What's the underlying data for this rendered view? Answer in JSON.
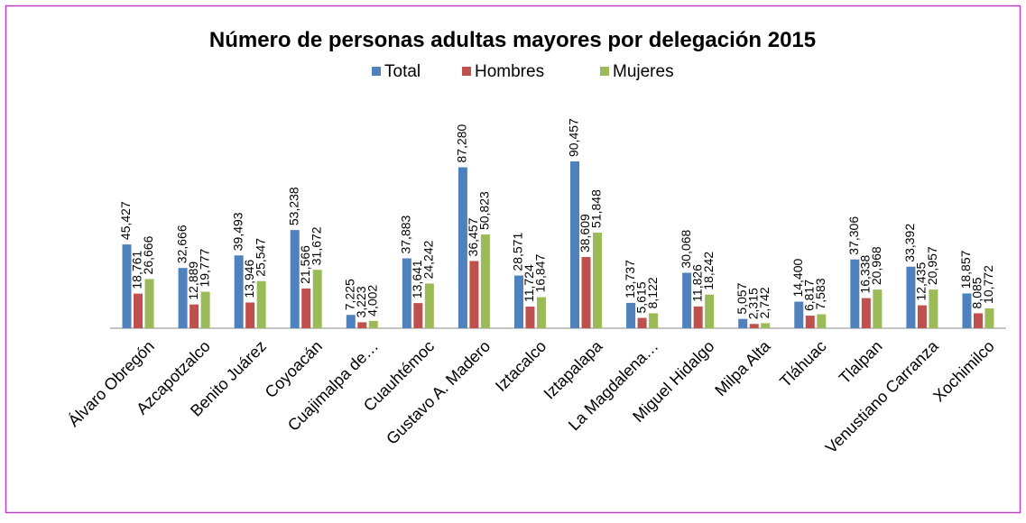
{
  "chart_data": {
    "type": "bar",
    "title": "Número de personas adultas mayores por delegación 2015",
    "categories": [
      "Álvaro Obregón",
      "Azcapotzalco",
      "Benito Juárez",
      "Coyoacán",
      "Cuajimalpa de…",
      "Cuauhtémoc",
      "Gustavo A. Madero",
      "Iztacalco",
      "Iztapalapa",
      "La Magdalena…",
      "Miguel Hidalgo",
      "Milpa Alta",
      "Tláhuac",
      "Tlalpan",
      "Venustiano Carranza",
      "Xochimilco"
    ],
    "series": [
      {
        "name": "Total",
        "color": "#4f81bd",
        "values": [
          45427,
          32666,
          39493,
          53238,
          7225,
          37883,
          87280,
          28571,
          90457,
          13737,
          30068,
          5057,
          14400,
          37306,
          33392,
          18857
        ],
        "value_labels": [
          "45,427",
          "32,666",
          "39,493",
          "53,238",
          "7,225",
          "37,883",
          "87,280",
          "28,571",
          "90,457",
          "13,737",
          "30,068",
          "5,057",
          "14,400",
          "37,306",
          "33,392",
          "18,857"
        ]
      },
      {
        "name": "Hombres",
        "color": "#c0504d",
        "values": [
          18761,
          12889,
          13946,
          21566,
          3223,
          13641,
          36457,
          11724,
          38609,
          5615,
          11826,
          2315,
          6817,
          16338,
          12435,
          8085
        ],
        "value_labels": [
          "18,761",
          "12,889",
          "13,946",
          "21,566",
          "3,223",
          "13,641",
          "36,457",
          "11,724",
          "38,609",
          "5,615",
          "11,826",
          "2,315",
          "6,817",
          "16,338",
          "12,435",
          "8,085"
        ]
      },
      {
        "name": "Mujeres",
        "color": "#9bbb59",
        "values": [
          26666,
          19777,
          25547,
          31672,
          4002,
          24242,
          50823,
          16847,
          51848,
          8122,
          18242,
          2742,
          7583,
          20968,
          20957,
          10772
        ],
        "value_labels": [
          "26,666",
          "19,777",
          "25,547",
          "31,672",
          "4,002",
          "24,242",
          "50,823",
          "16,847",
          "51,848",
          "8,122",
          "18,242",
          "2,742",
          "7,583",
          "20,968",
          "20,957",
          "10,772"
        ]
      }
    ],
    "legend": "top"
  }
}
